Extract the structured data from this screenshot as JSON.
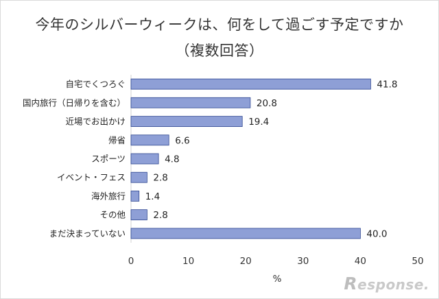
{
  "chart_data": {
    "type": "bar",
    "orientation": "horizontal",
    "title_line1": "今年のシルバーウィークは、何をして過ごす予定ですか",
    "title_line2": "（複数回答）",
    "categories": [
      "自宅でくつろぐ",
      "国内旅行（日帰りを含む）",
      "近場でお出かけ",
      "帰省",
      "スポーツ",
      "イベント・フェス",
      "海外旅行",
      "その他",
      "まだ決まっていない"
    ],
    "values": [
      41.8,
      20.8,
      19.4,
      6.6,
      4.8,
      2.8,
      1.4,
      2.8,
      40.0
    ],
    "value_labels": [
      "41.8",
      "20.8",
      "19.4",
      "6.6",
      "4.8",
      "2.8",
      "1.4",
      "2.8",
      "40.0"
    ],
    "x_ticks": [
      "0",
      "10",
      "20",
      "30",
      "40",
      "50"
    ],
    "xlabel": "%",
    "xlim": [
      0,
      50
    ],
    "grid": false,
    "bar_color": "#8e9fd6",
    "bar_edge_color": "#2e4690"
  },
  "watermark": {
    "initial": "R",
    "rest": "esponse."
  }
}
